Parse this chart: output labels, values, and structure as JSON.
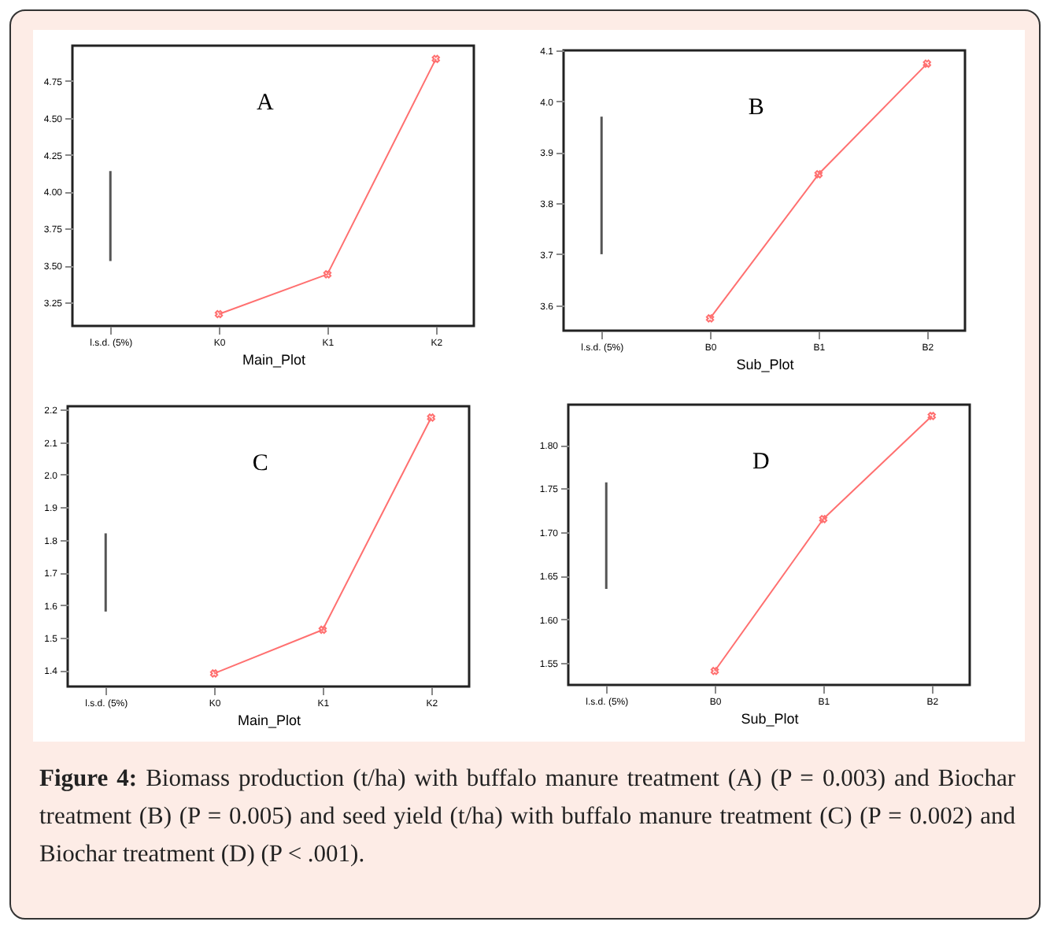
{
  "chart_data": [
    {
      "type": "line",
      "xlabel": "Main_Plot",
      "categories": [
        "l.s.d. (5%)",
        "K0",
        "K1",
        "K2"
      ],
      "ylim": [
        3.09,
        4.99
      ],
      "yticks": [
        3.25,
        {
          "value": 3.5,
          "label": "3.50"
        },
        3.75,
        {
          "value": 4,
          "label": "4.00"
        },
        4.25,
        {
          "value": 4.5,
          "label": "4.50"
        },
        4.75
      ],
      "grid": false,
      "annotations": [
        "A"
      ],
      "series": [
        {
          "type": "bar",
          "color": "#555555",
          "values": [
            0.61,
            null,
            null,
            null
          ],
          "base": [
            3.53,
            null,
            null,
            null
          ]
        },
        {
          "type": "line",
          "marker": "cross",
          "color": "#ff7070",
          "values": [
            null,
            3.17,
            3.44,
            4.9
          ]
        }
      ]
    },
    {
      "type": "line",
      "xlabel": "Sub_Plot",
      "categories": [
        "l.s.d. (5%)",
        "B0",
        "B1",
        "B2"
      ],
      "ylim": [
        3.55,
        4.1
      ],
      "yticks": [
        3.6,
        3.7,
        3.8,
        3.9,
        {
          "value": 4,
          "label": "4.0"
        },
        4.1
      ],
      "grid": false,
      "annotations": [
        "B"
      ],
      "series": [
        {
          "type": "bar",
          "color": "#555555",
          "values": [
            0.27,
            null,
            null,
            null
          ],
          "base": [
            3.7,
            null,
            null,
            null
          ]
        },
        {
          "type": "line",
          "marker": "cross",
          "color": "#ff7070",
          "values": [
            null,
            3.574,
            3.857,
            4.074
          ]
        }
      ]
    },
    {
      "type": "line",
      "xlabel": "Main_Plot",
      "categories": [
        "l.s.d. (5%)",
        "K0",
        "K1",
        "K2"
      ],
      "ylim": [
        1.35,
        2.21
      ],
      "yticks": [
        1.4,
        1.5,
        1.6,
        1.7,
        1.8,
        1.9,
        {
          "value": 2,
          "label": "2.0"
        },
        2.1,
        2.2
      ],
      "grid": false,
      "annotations": [
        "C"
      ],
      "series": [
        {
          "type": "bar",
          "color": "#555555",
          "values": [
            0.24,
            null,
            null,
            null
          ],
          "base": [
            1.58,
            null,
            null,
            null
          ]
        },
        {
          "type": "line",
          "marker": "cross",
          "color": "#ff7070",
          "values": [
            null,
            1.39,
            1.524,
            2.175
          ]
        }
      ]
    },
    {
      "type": "line",
      "xlabel": "Sub_Plot",
      "categories": [
        "l.s.d. (5%)",
        "B0",
        "B1",
        "B2"
      ],
      "ylim": [
        1.525,
        1.846
      ],
      "yticks": [
        1.55,
        {
          "value": 1.6,
          "label": "1.60"
        },
        1.65,
        {
          "value": 1.7,
          "label": "1.70"
        },
        1.75,
        {
          "value": 1.8,
          "label": "1.80"
        }
      ],
      "grid": false,
      "annotations": [
        "D"
      ],
      "series": [
        {
          "type": "bar",
          "color": "#555555",
          "values": [
            0.122,
            null,
            null,
            null
          ],
          "base": [
            1.635,
            null,
            null,
            null
          ]
        },
        {
          "type": "line",
          "marker": "cross",
          "color": "#ff7070",
          "values": [
            null,
            1.541,
            1.715,
            1.833
          ]
        }
      ]
    },
    {
      "type": "other",
      "annotations": [
        "Figure 4: Biomass production (t/ha) with buffalo manure treatment (A) (P = 0.003) and Biochar treatment (B) (P = 0.005) and seed yield (t/ha) with buffalo manure treatment (C) (P = 0.002) and Biochar treatment (D) (P < .001)."
      ]
    }
  ]
}
